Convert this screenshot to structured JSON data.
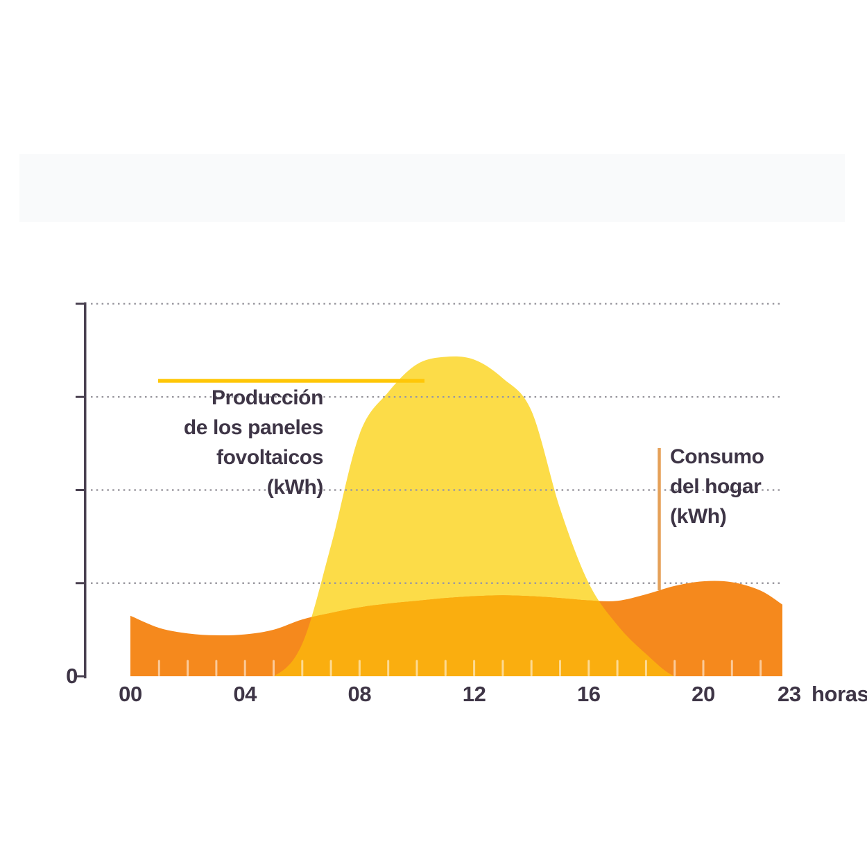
{
  "annotations": {
    "production_label_lines": [
      "Producción",
      "de los paneles",
      "fovoltaicos",
      "(kWh)"
    ],
    "consumption_label_lines": [
      "Consumo",
      "del hogar",
      "(kWh)"
    ]
  },
  "axis": {
    "origin_label": "0",
    "unit_label": "horas",
    "tick_labels": [
      "00",
      "04",
      "08",
      "12",
      "16",
      "20",
      "23"
    ],
    "tick_hours": [
      0,
      4,
      8,
      12,
      16,
      20,
      23
    ]
  },
  "colors": {
    "production_fill": "#FCDC48",
    "consumption_fill": "#F5891D",
    "overlap_fill": "#FAAE0F",
    "gridline": "#9B99A0",
    "axis": "#4A4151",
    "text": "#3E3546",
    "production_callout_line": "#FFC708",
    "consumption_callout_line": "#E5A159",
    "hour_tick": "rgba(255,255,255,0.55)",
    "top_band": "#F9FAFB"
  },
  "chart_data": {
    "type": "area",
    "x": [
      0,
      1,
      2,
      3,
      4,
      5,
      6,
      7,
      8,
      9,
      10,
      11,
      12,
      13,
      14,
      15,
      16,
      17,
      18,
      19,
      20,
      21,
      22,
      23
    ],
    "xlabel": "horas",
    "ylabel": "kWh",
    "ylim": [
      0,
      4
    ],
    "y_gridlines_units": [
      1,
      2,
      3,
      4
    ],
    "grid": "dotted",
    "legend_position": "inline-callouts",
    "series": [
      {
        "name": "Producción de los paneles fovoltaicos (kWh)",
        "color": "#FCDC48",
        "values": [
          0,
          0,
          0,
          0,
          0,
          0,
          0.35,
          1.4,
          2.6,
          3.05,
          3.35,
          3.43,
          3.4,
          3.2,
          2.85,
          1.8,
          1.0,
          0.55,
          0.24,
          0,
          0,
          0,
          0,
          0
        ]
      },
      {
        "name": "Consumo del hogar (kWh)",
        "color": "#F5891D",
        "values": [
          0.65,
          0.52,
          0.46,
          0.44,
          0.45,
          0.5,
          0.61,
          0.68,
          0.74,
          0.78,
          0.81,
          0.84,
          0.86,
          0.87,
          0.86,
          0.84,
          0.815,
          0.81,
          0.88,
          0.97,
          1.02,
          1.01,
          0.92,
          0.77
        ]
      }
    ]
  }
}
